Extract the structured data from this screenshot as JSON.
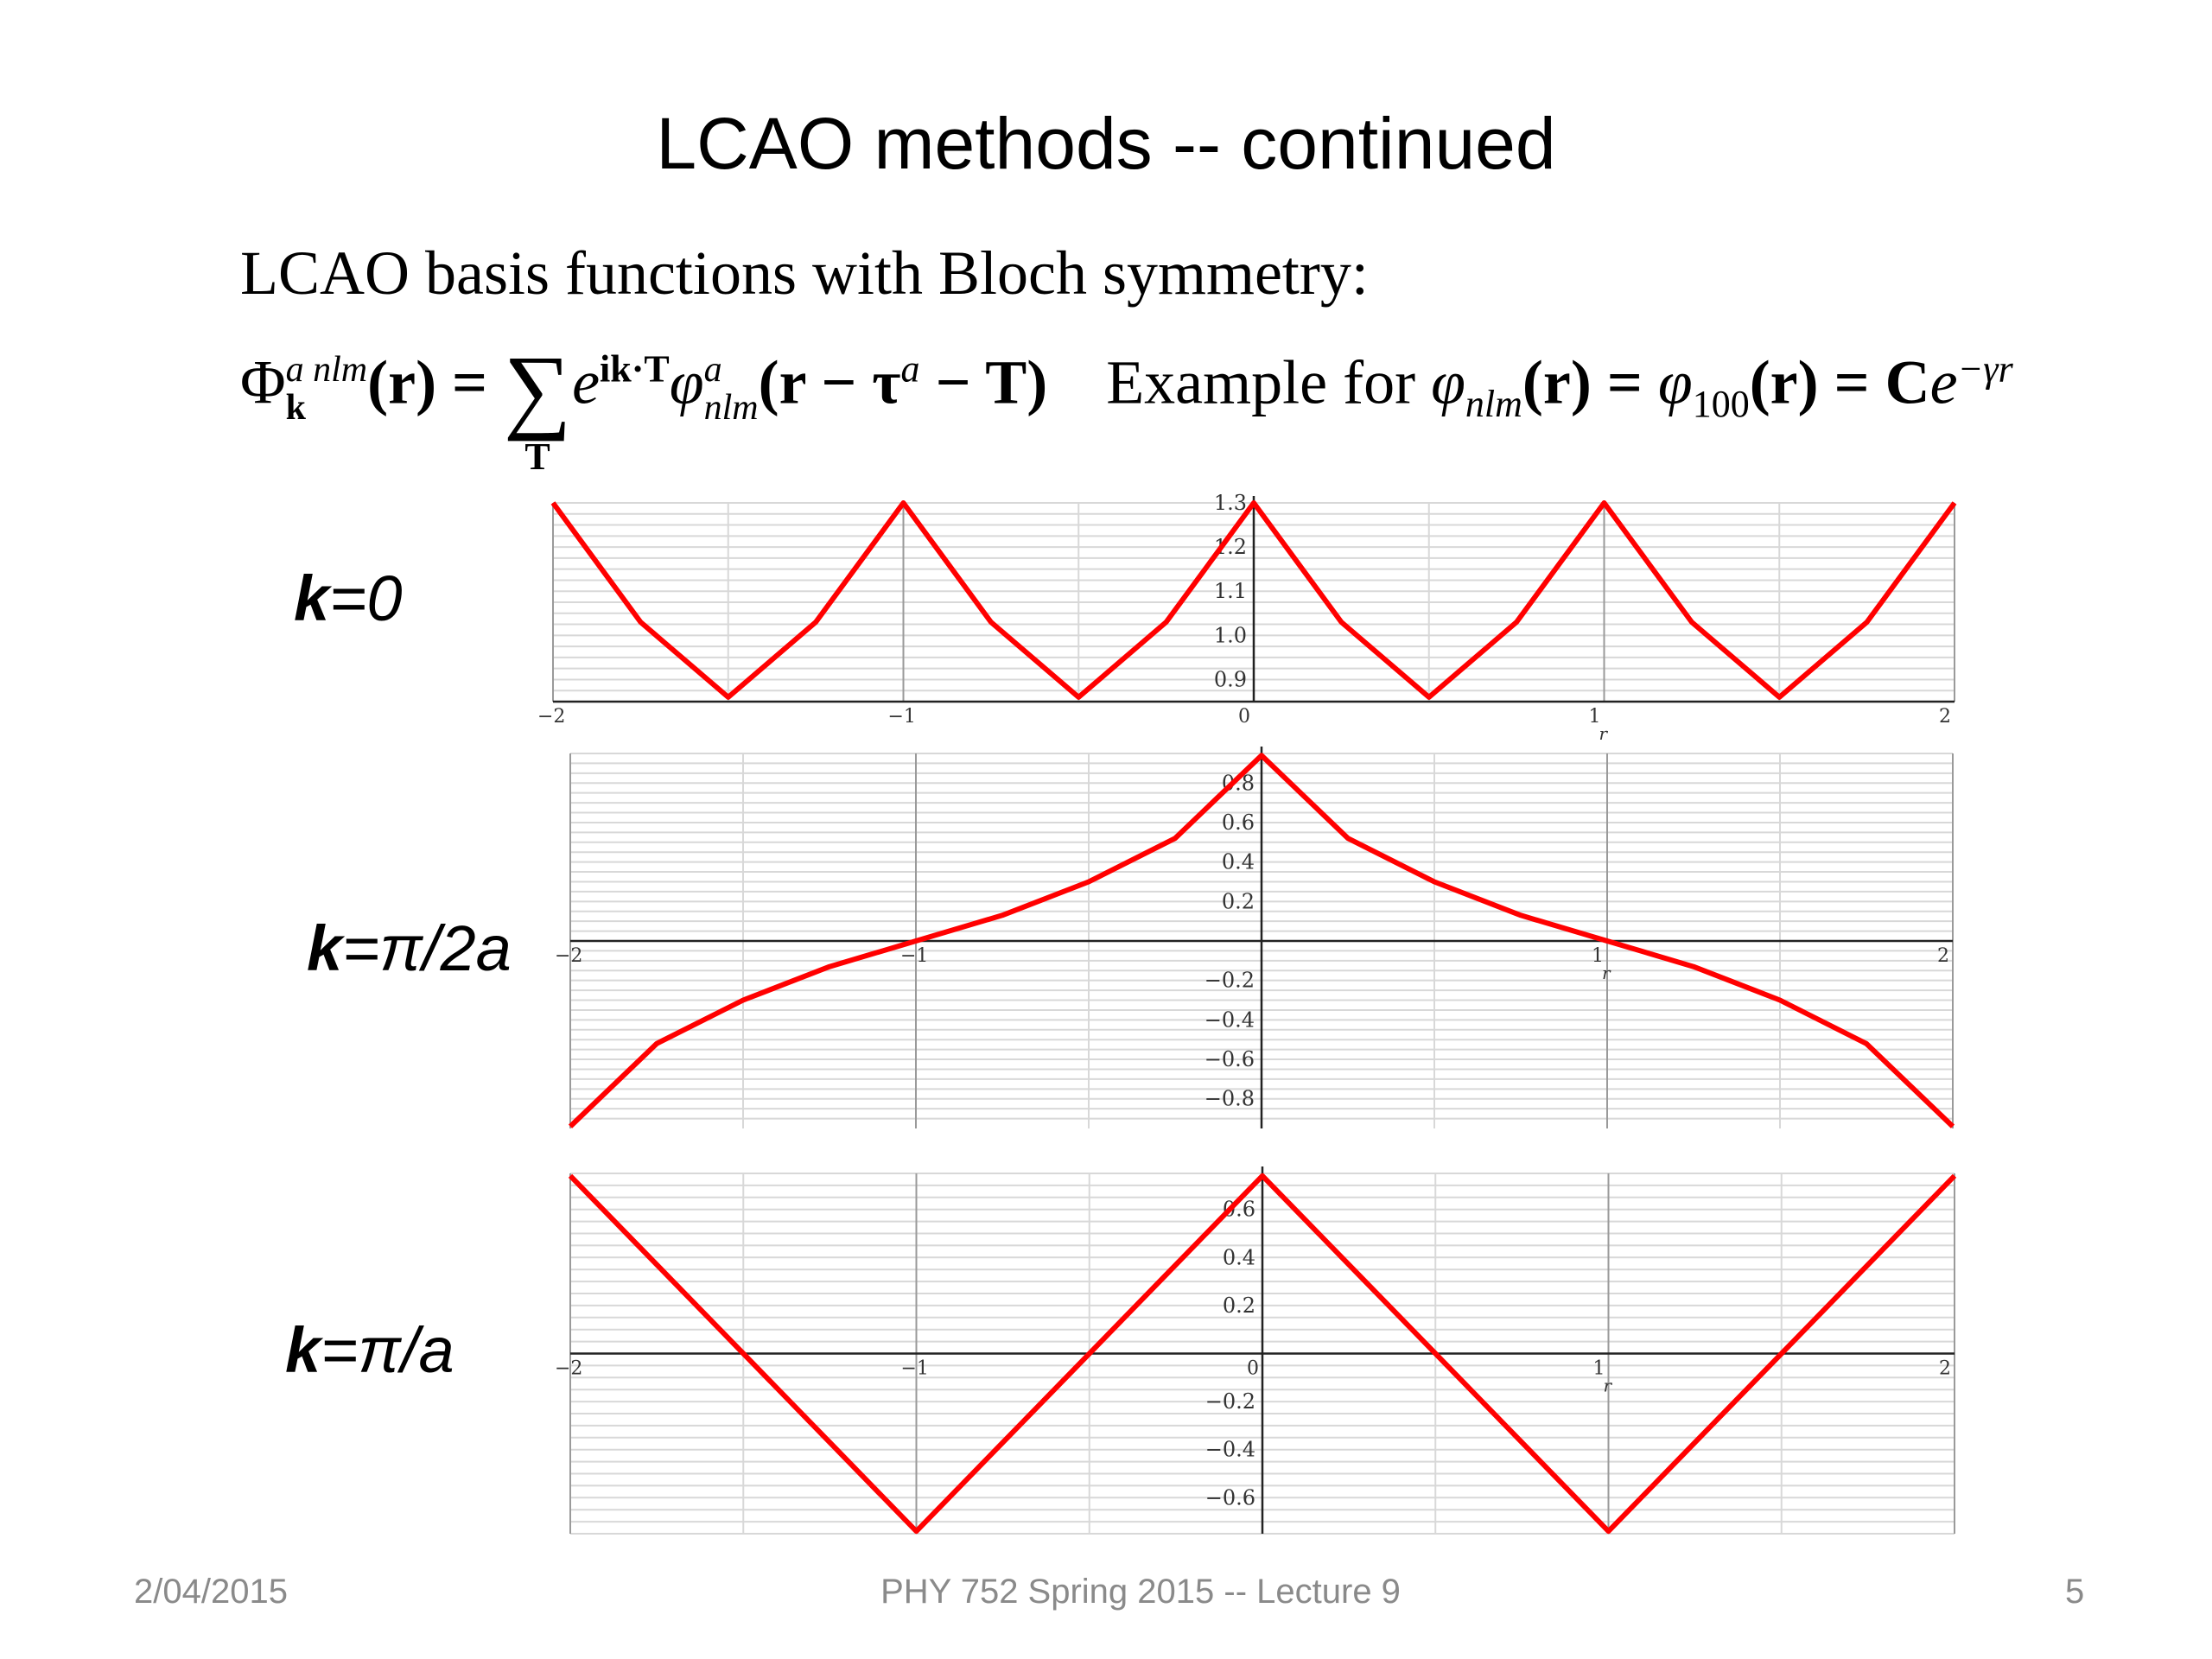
{
  "slide": {
    "title": "LCAO methods  -- continued",
    "subtitle": "LCAO basis functions with Bloch symmetry:",
    "equation": {
      "phi_symbol": "Φ",
      "lhs_sub": "k",
      "lhs_sup": "a nlm",
      "r_arg": "(r) =",
      "sum_symbol": "∑",
      "sum_under": "T",
      "exp_base": "e",
      "exp_sup": "ik·T",
      "phi_lower": "φ",
      "phi_lower_sup": "a",
      "phi_lower_sub": "nlm",
      "paren_body": "(r − τ",
      "tau_sup": "a",
      "paren_tail": " − T)",
      "example_text": "Example for ",
      "ex_phi1": "φ",
      "ex_phi1_sub": "nlm",
      "ex_mid": "(r) = ",
      "ex_phi2": "φ",
      "ex_phi2_sub": "100",
      "ex_end": "(r) = C",
      "ex_e": "e",
      "ex_e_sup": "−γr"
    }
  },
  "panels": [
    {
      "label_bold": "k",
      "label_rest": "=0"
    },
    {
      "label_bold": "k",
      "label_rest": "=π/2a"
    },
    {
      "label_bold": "k",
      "label_rest": "=π/a"
    }
  ],
  "chart_data": [
    {
      "type": "line",
      "xlabel": "r",
      "xlim": [
        -2,
        2
      ],
      "ylim": [
        0.85,
        1.3
      ],
      "x_ticks": [
        -2,
        -1,
        0,
        1,
        2
      ],
      "y_ticks": [
        0.9,
        1.0,
        1.1,
        1.2,
        1.3
      ],
      "y_tick_labels": [
        "0.9",
        "1.0",
        "1.1",
        "1.2",
        "1.3"
      ],
      "series": [
        {
          "color": "#ff0000",
          "x": [
            -2,
            -1.75,
            -1.5,
            -1.25,
            -1,
            -0.75,
            -0.5,
            -0.25,
            0,
            0.25,
            0.5,
            0.75,
            1,
            1.25,
            1.5,
            1.75,
            2
          ],
          "y": [
            1.3,
            1.03,
            0.86,
            1.03,
            1.3,
            1.03,
            0.86,
            1.03,
            1.3,
            1.03,
            0.86,
            1.03,
            1.3,
            1.03,
            0.86,
            1.03,
            1.3
          ]
        }
      ]
    },
    {
      "type": "line",
      "xlabel": "r",
      "xlim": [
        -2,
        2
      ],
      "ylim": [
        -0.95,
        0.95
      ],
      "x_ticks": [
        -2,
        -1,
        1,
        2
      ],
      "y_ticks": [
        -0.8,
        -0.6,
        -0.4,
        -0.2,
        0.2,
        0.4,
        0.6,
        0.8
      ],
      "y_tick_labels": [
        "−0.8",
        "−0.6",
        "−0.4",
        "−0.2",
        "0.2",
        "0.4",
        "0.6",
        "0.8"
      ],
      "series": [
        {
          "color": "#ff0000",
          "x": [
            -2,
            -1.75,
            -1.5,
            -1.25,
            -1,
            -0.75,
            -0.5,
            -0.25,
            0,
            0.25,
            0.5,
            0.75,
            1,
            1.25,
            1.5,
            1.75,
            2
          ],
          "y": [
            -0.94,
            -0.52,
            -0.3,
            -0.13,
            0.0,
            0.13,
            0.3,
            0.52,
            0.94,
            0.52,
            0.3,
            0.13,
            0.0,
            -0.13,
            -0.3,
            -0.52,
            -0.94
          ]
        }
      ]
    },
    {
      "type": "line",
      "xlabel": "r",
      "xlim": [
        -2,
        2
      ],
      "ylim": [
        -0.75,
        0.75
      ],
      "x_ticks": [
        -2,
        -1,
        0,
        1,
        2
      ],
      "y_ticks": [
        -0.6,
        -0.4,
        -0.2,
        0.2,
        0.4,
        0.6
      ],
      "y_tick_labels": [
        "−0.6",
        "−0.4",
        "−0.2",
        "0.2",
        "0.4",
        "0.6"
      ],
      "series": [
        {
          "color": "#ff0000",
          "x": [
            -2,
            -1.75,
            -1.5,
            -1.25,
            -1,
            -0.75,
            -0.5,
            -0.25,
            0,
            0.25,
            0.5,
            0.75,
            1,
            1.25,
            1.5,
            1.75,
            2
          ],
          "y": [
            0.74,
            0.37,
            0.0,
            -0.37,
            -0.74,
            -0.37,
            0.0,
            0.37,
            0.74,
            0.37,
            0.0,
            -0.37,
            -0.74,
            -0.37,
            0.0,
            0.37,
            0.74
          ]
        }
      ]
    }
  ],
  "footer": {
    "date": "2/04/2015",
    "course": "PHY 752  Spring 2015 -- Lecture 9",
    "page": "5"
  }
}
